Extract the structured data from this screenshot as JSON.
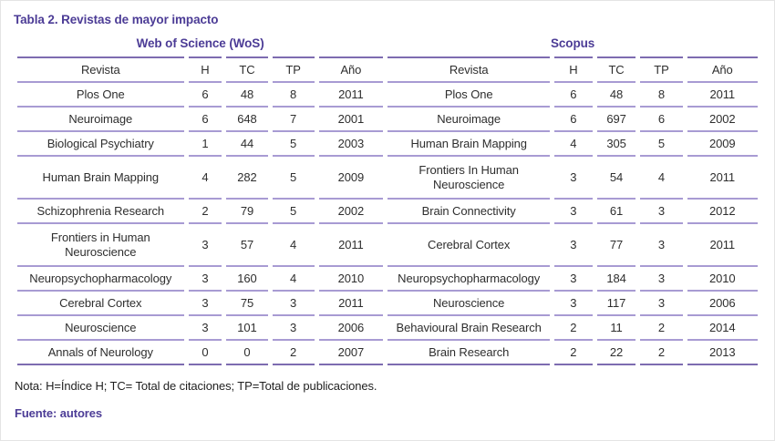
{
  "title": "Tabla 2. Revistas de mayor impacto",
  "table": {
    "group_headers": [
      "Web of Science (WoS)",
      "Scopus"
    ],
    "column_headers": [
      "Revista",
      "H",
      "TC",
      "TP",
      "Año"
    ],
    "wos_rows": [
      {
        "revista": "Plos One",
        "h": "6",
        "tc": "48",
        "tp": "8",
        "ano": "2011"
      },
      {
        "revista": "Neuroimage",
        "h": "6",
        "tc": "648",
        "tp": "7",
        "ano": "2001"
      },
      {
        "revista": "Biological Psychiatry",
        "h": "1",
        "tc": "44",
        "tp": "5",
        "ano": "2003"
      },
      {
        "revista": "Human Brain Mapping",
        "h": "4",
        "tc": "282",
        "tp": "5",
        "ano": "2009"
      },
      {
        "revista": "Schizophrenia Research",
        "h": "2",
        "tc": "79",
        "tp": "5",
        "ano": "2002"
      },
      {
        "revista": "Frontiers in Human Neuroscience",
        "h": "3",
        "tc": "57",
        "tp": "4",
        "ano": "2011"
      },
      {
        "revista": "Neuropsychopharmacology",
        "h": "3",
        "tc": "160",
        "tp": "4",
        "ano": "2010"
      },
      {
        "revista": "Cerebral Cortex",
        "h": "3",
        "tc": "75",
        "tp": "3",
        "ano": "2011"
      },
      {
        "revista": "Neuroscience",
        "h": "3",
        "tc": "101",
        "tp": "3",
        "ano": "2006"
      },
      {
        "revista": "Annals of Neurology",
        "h": "0",
        "tc": "0",
        "tp": "2",
        "ano": "2007"
      }
    ],
    "scopus_rows": [
      {
        "revista": "Plos One",
        "h": "6",
        "tc": "48",
        "tp": "8",
        "ano": "2011"
      },
      {
        "revista": "Neuroimage",
        "h": "6",
        "tc": "697",
        "tp": "6",
        "ano": "2002"
      },
      {
        "revista": "Human Brain Mapping",
        "h": "4",
        "tc": "305",
        "tp": "5",
        "ano": "2009"
      },
      {
        "revista": "Frontiers In Human Neuroscience",
        "h": "3",
        "tc": "54",
        "tp": "4",
        "ano": "2011"
      },
      {
        "revista": "Brain Connectivity",
        "h": "3",
        "tc": "61",
        "tp": "3",
        "ano": "2012"
      },
      {
        "revista": "Cerebral Cortex",
        "h": "3",
        "tc": "77",
        "tp": "3",
        "ano": "2011"
      },
      {
        "revista": "Neuropsychopharmacology",
        "h": "3",
        "tc": "184",
        "tp": "3",
        "ano": "2010"
      },
      {
        "revista": "Neuroscience",
        "h": "3",
        "tc": "117",
        "tp": "3",
        "ano": "2006"
      },
      {
        "revista": "Behavioural Brain Research",
        "h": "2",
        "tc": "11",
        "tp": "2",
        "ano": "2014"
      },
      {
        "revista": "Brain Research",
        "h": "2",
        "tc": "22",
        "tp": "2",
        "ano": "2013"
      }
    ]
  },
  "note": "Nota: H=Índice H; TC= Total de citaciones; TP=Total de publicaciones.",
  "source": "Fuente: autores",
  "colors": {
    "accent": "#4c3c96",
    "line_inner": "#a89bd3",
    "line_outer": "#7d6cb0",
    "body_text": "#2e2e2e"
  }
}
